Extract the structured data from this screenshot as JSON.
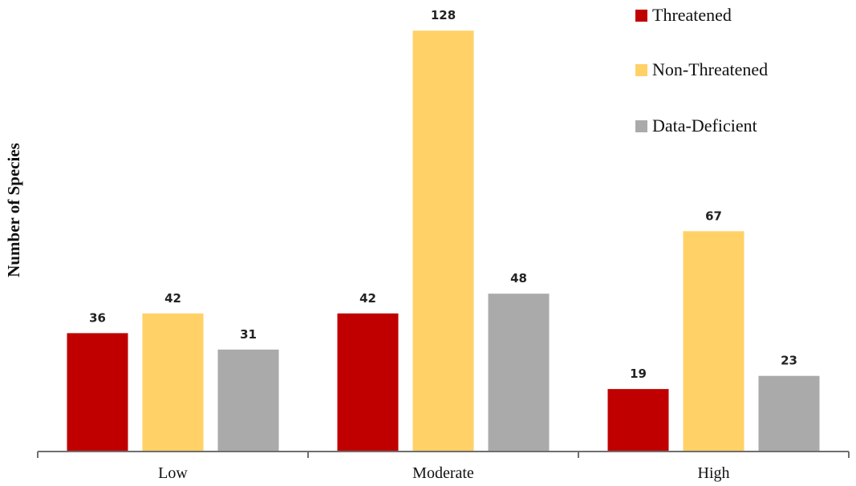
{
  "chart_data": {
    "type": "bar",
    "title": "",
    "xlabel": "",
    "ylabel": "Number of Species",
    "categories": [
      "Low",
      "Moderate",
      "High"
    ],
    "series": [
      {
        "name": "Threatened",
        "color": "#c00000",
        "values": [
          36,
          42,
          19
        ]
      },
      {
        "name": "Non-Threatened",
        "color": "#ffd166",
        "values": [
          42,
          128,
          67
        ]
      },
      {
        "name": "Data-Deficient",
        "color": "#aaaaaa",
        "values": [
          31,
          48,
          23
        ]
      }
    ],
    "ylim": [
      0,
      135
    ],
    "grid": false,
    "legend_position": "top-right",
    "data_labels": true
  }
}
